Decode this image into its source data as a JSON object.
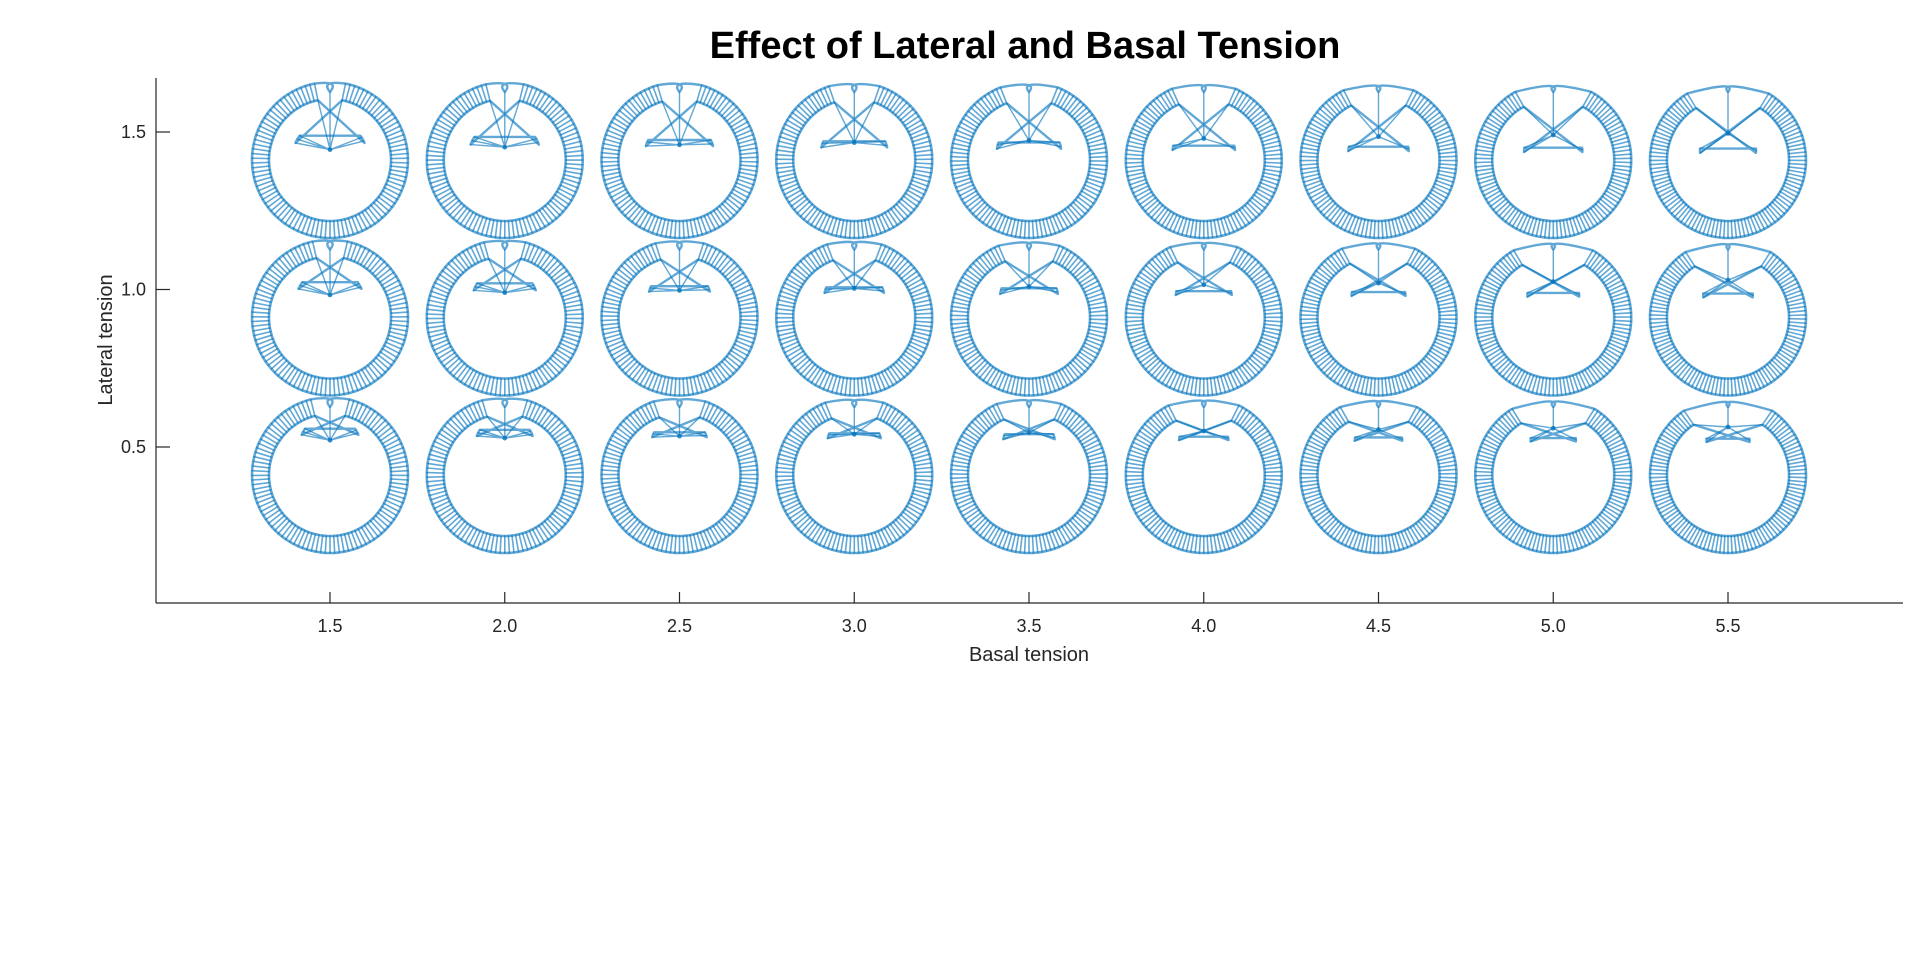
{
  "chart_data": {
    "type": "scatter",
    "title": "Effect of Lateral and Basal Tension",
    "xlabel": "Basal tension",
    "ylabel": "Lateral tension",
    "x_ticks": [
      1.5,
      2.0,
      2.5,
      3.0,
      3.5,
      4.0,
      4.5,
      5.0,
      5.5
    ],
    "x_tick_labels": [
      "1.5",
      "2.0",
      "2.5",
      "3.0",
      "3.5",
      "4.0",
      "4.5",
      "5.0",
      "5.5"
    ],
    "y_ticks": [
      0.5,
      1.0,
      1.5
    ],
    "y_tick_labels": [
      "0.5",
      "1.0",
      "1.5"
    ],
    "xlim": [
      1.0,
      6.0
    ],
    "ylim": [
      0.0,
      1.67
    ],
    "grid": false,
    "legend": "none",
    "marker": "cross-section of a folding epithelial vesicle",
    "marker_color": "#0072BD",
    "basal_tension": [
      1.5,
      2.0,
      2.5,
      3.0,
      3.5,
      4.0,
      4.5,
      5.0,
      5.5
    ],
    "lateral_tension": [
      0.5,
      1.0,
      1.5
    ]
  }
}
